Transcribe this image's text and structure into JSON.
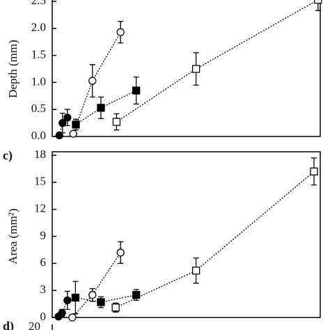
{
  "chart_data": [
    {
      "type": "scatter",
      "y_label": "Depth (mm)",
      "xlim": [
        0,
        6
      ],
      "ylim": [
        0,
        2.5
      ],
      "yticks": [
        {
          "value": 0,
          "label": "0.0"
        },
        0.5,
        {
          "value": 1,
          "label": "1.0"
        },
        1.5,
        {
          "value": 2,
          "label": "2.0"
        },
        2.5
      ],
      "series": [
        {
          "marker": "filled-circle",
          "color": "#000000",
          "x": [
            0.16,
            0.23,
            0.34
          ],
          "values": [
            0.02,
            0.25,
            0.35
          ],
          "errors": [
            0.03,
            0.18,
            0.15
          ]
        },
        {
          "marker": "open-circle",
          "color": "#000000",
          "x": [
            0.47,
            0.9,
            1.53
          ],
          "values": [
            0.05,
            1.03,
            1.93
          ],
          "errors": [
            0.04,
            0.3,
            0.2
          ]
        },
        {
          "marker": "filled-square",
          "color": "#000000",
          "x": [
            0.53,
            1.09,
            1.88
          ],
          "values": [
            0.22,
            0.53,
            0.85
          ],
          "errors": [
            0.1,
            0.2,
            0.25
          ]
        },
        {
          "marker": "open-square",
          "color": "#000000",
          "x": [
            1.44,
            3.22,
            5.95
          ],
          "values": [
            0.27,
            1.25,
            2.53
          ],
          "errors": [
            0.15,
            0.3,
            0.2
          ]
        }
      ]
    },
    {
      "type": "scatter",
      "label": "c)",
      "y_label": "Area (mm²)",
      "xlim": [
        0,
        6
      ],
      "ylim": [
        0,
        18
      ],
      "yticks": [
        0,
        3,
        6,
        9,
        12,
        15,
        18
      ],
      "series": [
        {
          "marker": "filled-circle",
          "color": "#000000",
          "x": [
            0.14,
            0.22,
            0.34
          ],
          "values": [
            0.1,
            0.5,
            1.9
          ],
          "errors": [
            0.2,
            0.4,
            1.0
          ]
        },
        {
          "marker": "open-circle",
          "color": "#000000",
          "x": [
            0.45,
            0.9,
            1.53
          ],
          "values": [
            0,
            2.5,
            7.2
          ],
          "errors": [
            0.1,
            0.7,
            1.2
          ]
        },
        {
          "marker": "filled-square",
          "color": "#000000",
          "x": [
            0.52,
            1.09,
            1.88
          ],
          "values": [
            2.2,
            1.7,
            2.5
          ],
          "errors": [
            1.8,
            0.6,
            0.6
          ]
        },
        {
          "marker": "open-square",
          "color": "#000000",
          "x": [
            1.42,
            3.22,
            5.86
          ],
          "values": [
            1.1,
            5.2,
            16.2
          ],
          "errors": [
            0.5,
            1.4,
            1.5
          ]
        }
      ]
    },
    {
      "type": "stub",
      "label": "d)",
      "yticks": [
        20
      ]
    }
  ]
}
